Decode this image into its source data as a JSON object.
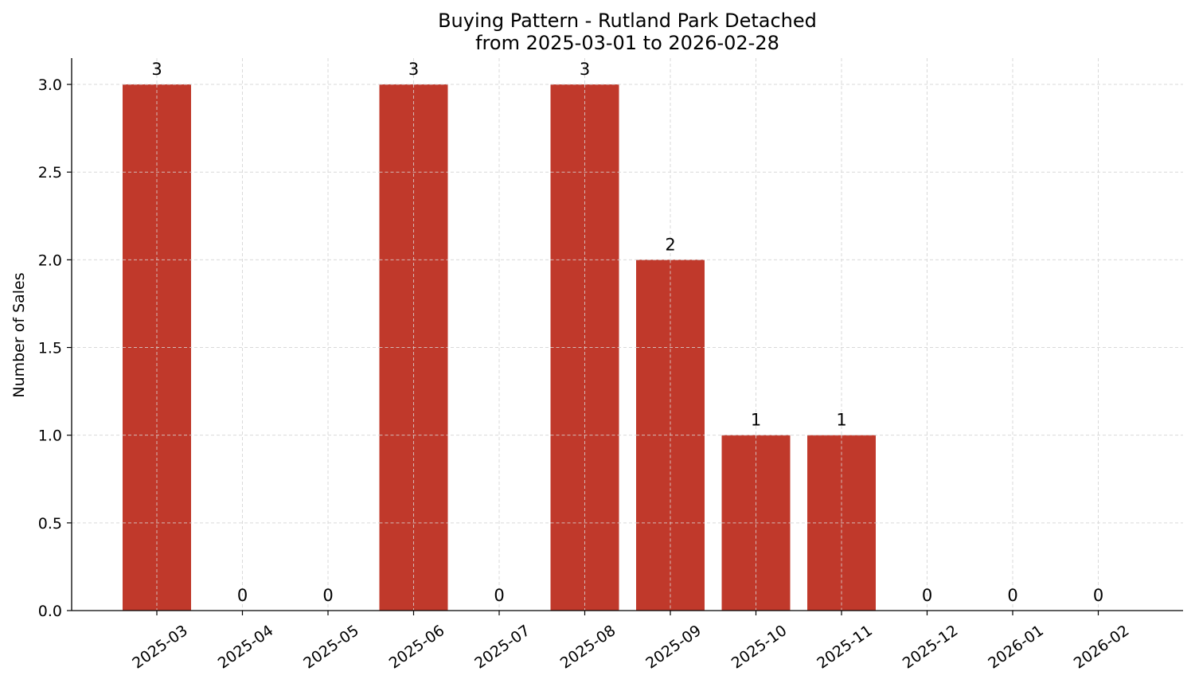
{
  "chart_data": {
    "type": "bar",
    "title": "Buying Pattern - Rutland Park Detached",
    "subtitle": "from 2025-03-01 to 2026-02-28",
    "xlabel": "",
    "ylabel": "Number of Sales",
    "categories": [
      "2025-03",
      "2025-04",
      "2025-05",
      "2025-06",
      "2025-07",
      "2025-08",
      "2025-09",
      "2025-10",
      "2025-11",
      "2025-12",
      "2026-01",
      "2026-02"
    ],
    "values": [
      3,
      0,
      0,
      3,
      0,
      3,
      2,
      1,
      1,
      0,
      0,
      0
    ],
    "data_labels": [
      "3",
      "0",
      "0",
      "3",
      "0",
      "3",
      "2",
      "1",
      "1",
      "0",
      "0",
      "0"
    ],
    "ylim": [
      0,
      3.15
    ],
    "yticks": [
      0.0,
      0.5,
      1.0,
      1.5,
      2.0,
      2.5,
      3.0
    ],
    "ytick_labels": [
      "0.0",
      "0.5",
      "1.0",
      "1.5",
      "2.0",
      "2.5",
      "3.0"
    ],
    "grid": true,
    "bar_color": "#c0392b",
    "grid_color": "#d9d9d9"
  }
}
